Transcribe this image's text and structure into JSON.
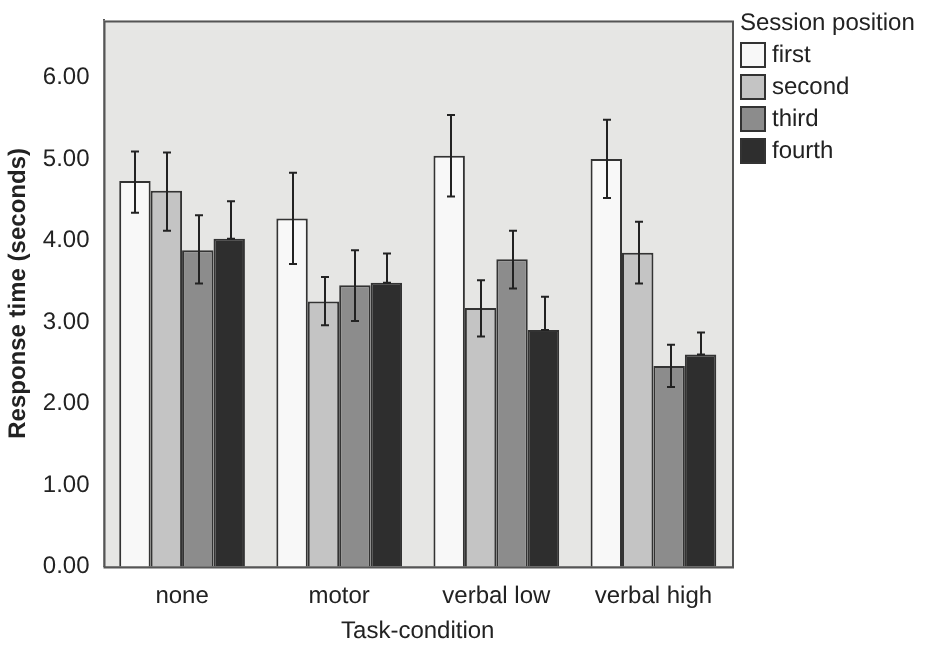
{
  "chart_data": {
    "type": "bar",
    "xlabel": "Task-condition",
    "ylabel": "Response time (seconds)",
    "legend_title": "Session position",
    "legend": "top right",
    "grid": false,
    "categories": [
      "none",
      "motor",
      "verbal low",
      "verbal high"
    ],
    "ylim": [
      0,
      6.7
    ],
    "yticks": [
      {
        "value": 0,
        "label": "0.00"
      },
      {
        "value": 1,
        "label": "1.00"
      },
      {
        "value": 2,
        "label": "2.00"
      },
      {
        "value": 3,
        "label": "3.00"
      },
      {
        "value": 4,
        "label": "4.00"
      },
      {
        "value": 5,
        "label": "5.00"
      },
      {
        "value": 6,
        "label": "6.00"
      }
    ],
    "series": [
      {
        "name": "first",
        "color": "#f8f8f8",
        "values": [
          4.73,
          4.27,
          5.04,
          5.0
        ],
        "errors": [
          [
            4.34,
            5.09
          ],
          [
            3.71,
            4.83
          ],
          [
            4.54,
            5.54
          ],
          [
            4.52,
            5.48
          ]
        ]
      },
      {
        "name": "second",
        "color": "#c4c4c4",
        "values": [
          4.61,
          3.25,
          3.17,
          3.85
        ],
        "errors": [
          [
            4.12,
            5.08
          ],
          [
            2.96,
            3.55
          ],
          [
            2.82,
            3.51
          ],
          [
            3.47,
            4.23
          ]
        ]
      },
      {
        "name": "third",
        "color": "#8c8c8c",
        "values": [
          3.88,
          3.45,
          3.77,
          2.46
        ],
        "errors": [
          [
            3.47,
            4.31
          ],
          [
            3.01,
            3.88
          ],
          [
            3.41,
            4.12
          ],
          [
            2.2,
            2.72
          ]
        ]
      },
      {
        "name": "fourth",
        "color": "#2e2e2e",
        "values": [
          4.02,
          3.48,
          2.9,
          2.6
        ],
        "errors": [
          [
            4.02,
            4.48
          ],
          [
            3.48,
            3.84
          ],
          [
            2.9,
            3.31
          ],
          [
            2.6,
            2.87
          ]
        ]
      }
    ]
  }
}
